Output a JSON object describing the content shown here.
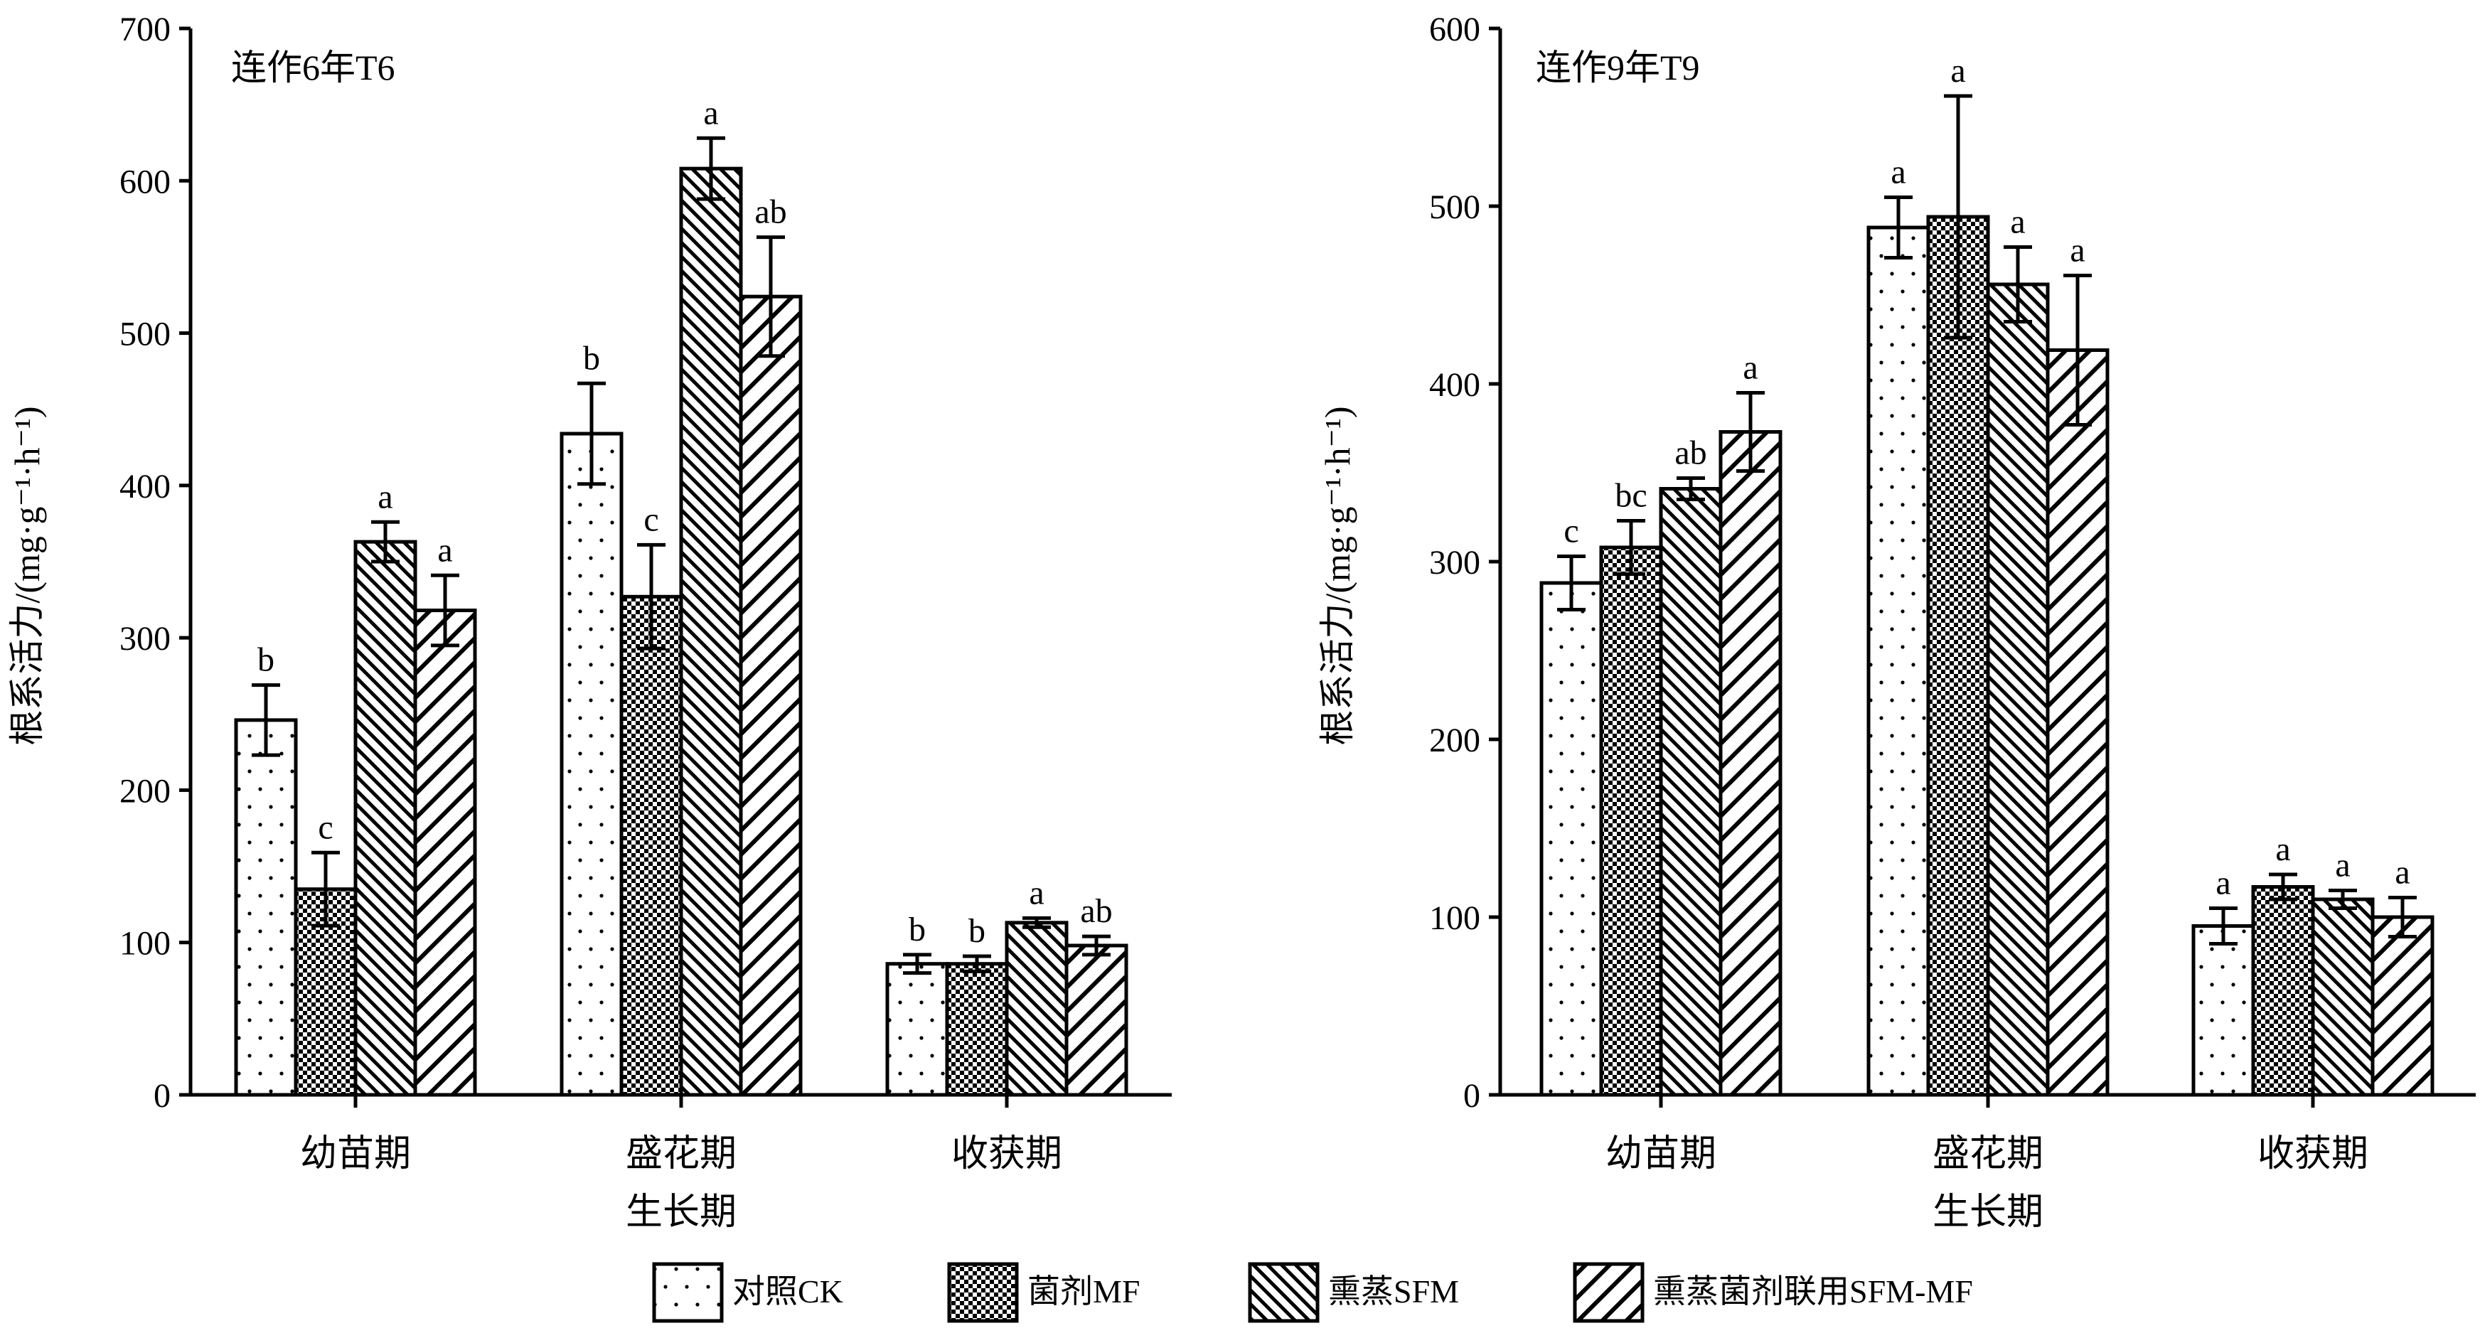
{
  "chart_data": [
    {
      "type": "bar",
      "title": "连作6年T6",
      "xlabel": "生长期",
      "ylabel": "根系活力/(mg·g⁻¹·h⁻¹)",
      "ylim": [
        0,
        700
      ],
      "yticks": [
        0,
        100,
        200,
        300,
        400,
        500,
        600,
        700
      ],
      "categories": [
        "幼苗期",
        "盛花期",
        "收获期"
      ],
      "grid": false,
      "error_bars": true,
      "series": [
        {
          "name": "对照CK",
          "values": [
            246,
            434,
            86
          ],
          "errors": [
            23,
            33,
            6
          ],
          "letters": [
            "b",
            "b",
            "b"
          ]
        },
        {
          "name": "菌剂MF",
          "values": [
            135,
            327,
            86
          ],
          "errors": [
            24,
            34,
            5
          ],
          "letters": [
            "c",
            "c",
            "b"
          ]
        },
        {
          "name": "熏蒸SFM",
          "values": [
            363,
            608,
            113
          ],
          "errors": [
            13,
            20,
            3
          ],
          "letters": [
            "a",
            "a",
            "a"
          ]
        },
        {
          "name": "熏蒸菌剂联用SFM-MF",
          "values": [
            318,
            524,
            98
          ],
          "errors": [
            23,
            39,
            6
          ],
          "letters": [
            "a",
            "ab",
            "ab"
          ]
        }
      ]
    },
    {
      "type": "bar",
      "title": "连作9年T9",
      "xlabel": "生长期",
      "ylabel": "根系活力/(mg·g⁻¹·h⁻¹)",
      "ylim": [
        0,
        600
      ],
      "yticks": [
        0,
        100,
        200,
        300,
        400,
        500,
        600
      ],
      "categories": [
        "幼苗期",
        "盛花期",
        "收获期"
      ],
      "grid": false,
      "error_bars": true,
      "series": [
        {
          "name": "对照CK",
          "values": [
            288,
            488,
            95
          ],
          "errors": [
            15,
            17,
            10
          ],
          "letters": [
            "c",
            "a",
            "a"
          ]
        },
        {
          "name": "菌剂MF",
          "values": [
            308,
            494,
            117
          ],
          "errors": [
            15,
            68,
            7
          ],
          "letters": [
            "bc",
            "a",
            "a"
          ]
        },
        {
          "name": "熏蒸SFM",
          "values": [
            341,
            456,
            110
          ],
          "errors": [
            6,
            21,
            5
          ],
          "letters": [
            "ab",
            "a",
            "a"
          ]
        },
        {
          "name": "熏蒸菌剂联用SFM-MF",
          "values": [
            373,
            419,
            100
          ],
          "errors": [
            22,
            42,
            11
          ],
          "letters": [
            "a",
            "a",
            "a"
          ]
        }
      ]
    }
  ],
  "legend": {
    "placement": "bottom",
    "items": [
      {
        "label": "对照CK",
        "pattern": "dots"
      },
      {
        "label": "菌剂MF",
        "pattern": "checker"
      },
      {
        "label": "熏蒸SFM",
        "pattern": "fine-diagonal"
      },
      {
        "label": "熏蒸菌剂联用SFM-MF",
        "pattern": "coarse-diagonal"
      }
    ]
  },
  "colors": {
    "ink": "#000000",
    "background": "#ffffff"
  }
}
